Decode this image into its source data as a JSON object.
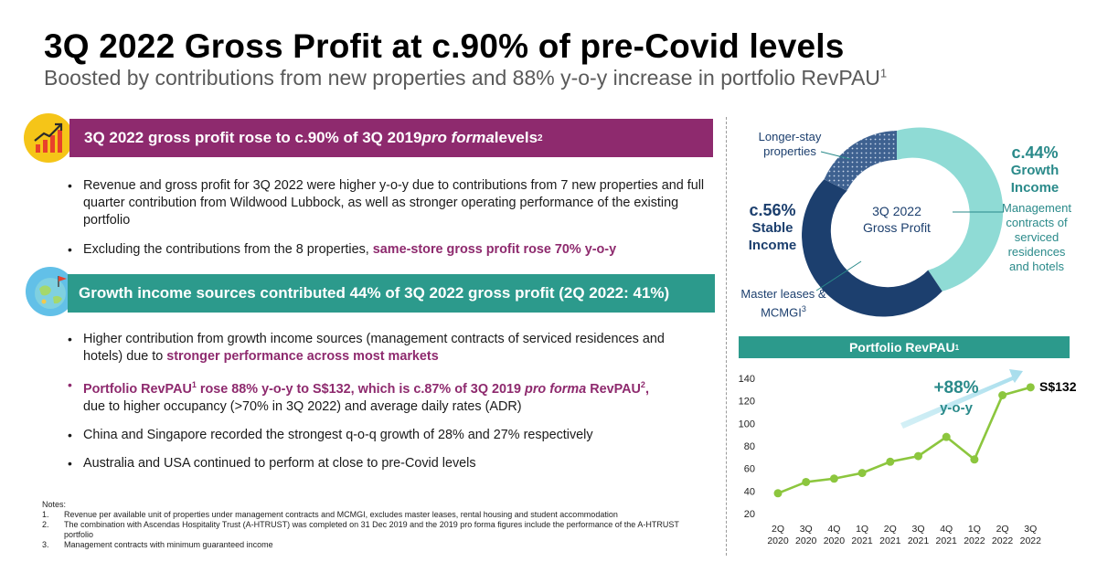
{
  "header": {
    "title": "3Q 2022 Gross Profit at c.90% of pre-Covid levels",
    "subtitle": "Boosted by contributions from new properties and 88% y-o-y increase in portfolio RevPAU",
    "subtitle_sup": "1"
  },
  "section1": {
    "banner_pre": "3Q 2022 gross profit rose to c.90% of 3Q 2019 ",
    "banner_italic": "pro forma",
    "banner_post": " levels",
    "banner_sup": "2",
    "bullets": {
      "b1": "Revenue and gross profit for 3Q 2022 were higher y-o-y due to contributions from 7 new properties and full quarter contribution from Wildwood Lubbock, as well as stronger operating performance of the existing portfolio",
      "b2_pre": "Excluding the contributions from the 8 properties, ",
      "b2_hl": "same-store gross profit rose 70% y-o-y"
    }
  },
  "section2": {
    "banner": "Growth income sources contributed 44% of 3Q 2022 gross profit (2Q 2022: 41%)",
    "bullets": {
      "b1_pre": "Higher contribution from growth income sources (management contracts of serviced residences and hotels) due to ",
      "b1_hl": "stronger performance across most markets",
      "b2_a": "Portfolio RevPAU",
      "b2_sup1": "1",
      "b2_b": " rose 88% y-o-y to S$132, which is c.87% of 3Q 2019 ",
      "b2_italic": "pro forma",
      "b2_c": " RevPAU",
      "b2_sup2": "2",
      "b2_d": ",",
      "b2_plain": "due to higher occupancy (>70% in 3Q 2022) and average daily rates (ADR)",
      "b3": "China and Singapore recorded the strongest q-o-q growth of 28% and 27% respectively",
      "b4": "Australia and USA continued to perform at close to pre-Covid levels"
    }
  },
  "notes": {
    "heading": "Notes:",
    "items": [
      {
        "num": "1.",
        "text": "Revenue per available unit of properties under management contracts and MCMGI, excludes master leases, rental housing and student accommodation"
      },
      {
        "num": "2.",
        "text": "The combination with Ascendas Hospitality Trust (A-HTRUST) was completed on 31 Dec 2019 and the 2019 pro forma figures include the performance of the A-HTRUST portfolio"
      },
      {
        "num": "3.",
        "text": "Management contracts with minimum guaranteed income"
      }
    ]
  },
  "donut": {
    "center_line1": "3Q 2022",
    "center_line2": "Gross Profit",
    "stable_pct": "c.56%",
    "stable_line1": "Stable",
    "stable_line2": "Income",
    "growth_pct": "c.44%",
    "growth_line1": "Growth",
    "growth_line2": "Income",
    "longer_stay": [
      "Longer-stay",
      "properties"
    ],
    "master_leases": [
      "Master leases &",
      "MCMGI"
    ],
    "master_leases_sup": "3",
    "mgmt": [
      "Management",
      "contracts of",
      "serviced",
      "residences",
      "and hotels"
    ],
    "colors": {
      "navy": "#1c3f6e",
      "teal": "#8fdbd5",
      "dotted": "#3e6190"
    }
  },
  "revpau": {
    "banner": "Portfolio RevPAU",
    "banner_sup": "1",
    "growth_label": "+88%",
    "growth_sub": "y-o-y",
    "end_label": "S$132"
  },
  "chart_data": {
    "type": "line",
    "title": "Portfolio RevPAU",
    "categories": [
      "2Q 2020",
      "3Q 2020",
      "4Q 2020",
      "1Q 2021",
      "2Q 2021",
      "3Q 2021",
      "4Q 2021",
      "1Q 2022",
      "2Q 2022",
      "3Q 2022"
    ],
    "x_top": [
      "2Q",
      "3Q",
      "4Q",
      "1Q",
      "2Q",
      "3Q",
      "4Q",
      "1Q",
      "2Q",
      "3Q"
    ],
    "x_bottom": [
      "2020",
      "2020",
      "2020",
      "2021",
      "2021",
      "2021",
      "2021",
      "2022",
      "2022",
      "2022"
    ],
    "series": [
      {
        "values": [
          38,
          48,
          51,
          56,
          66,
          71,
          88,
          68,
          125,
          132
        ],
        "color": "#8cc63e"
      }
    ],
    "ylim": [
      20,
      140
    ],
    "yticks": [
      20,
      40,
      60,
      80,
      100,
      120,
      140
    ],
    "grid": false
  }
}
